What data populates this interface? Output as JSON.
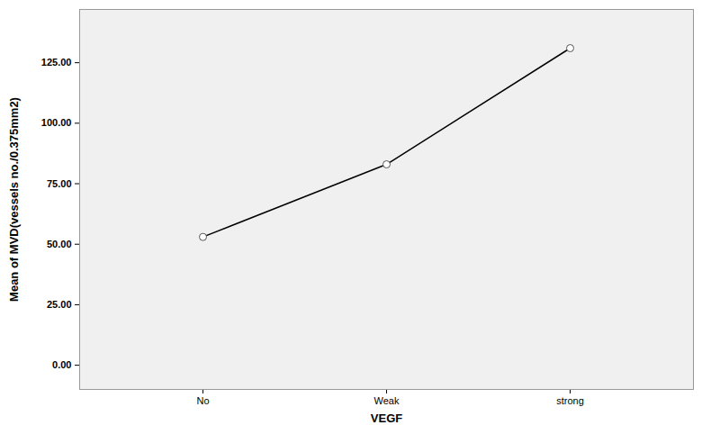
{
  "chart_data": {
    "type": "line",
    "x_label": "VEGF",
    "y_label": "Mean of MVD(vessels no./0.375mm2)",
    "categories": [
      "No",
      "Weak",
      "strong"
    ],
    "values": [
      53,
      83,
      131
    ],
    "color": "#000000",
    "marker": "circle",
    "line_style": "solid",
    "ylim": [
      -10,
      147
    ],
    "yticks": [
      {
        "value": 0,
        "label": "0.00"
      },
      {
        "value": 25,
        "label": "25.00"
      },
      {
        "value": 50,
        "label": "50.00"
      },
      {
        "value": 75,
        "label": "75.00"
      },
      {
        "value": 100,
        "label": "100.00"
      },
      {
        "value": 125,
        "label": "125.00"
      }
    ],
    "grid": false
  }
}
